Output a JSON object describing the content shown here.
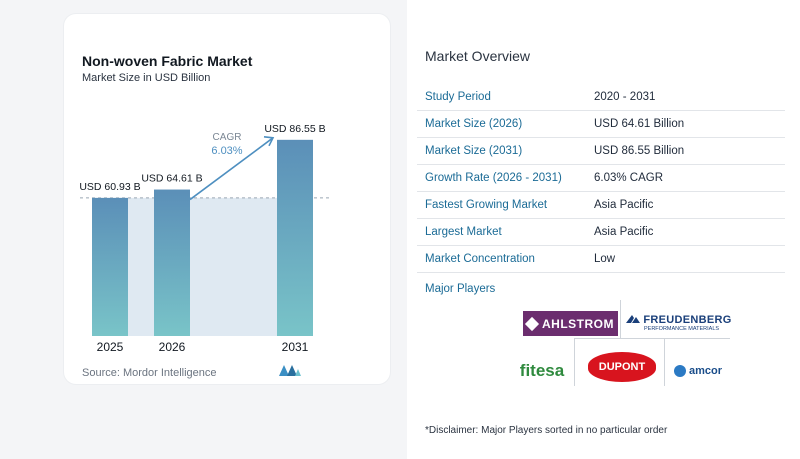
{
  "chart_data": {
    "type": "bar",
    "title": "Non-woven Fabric Market",
    "subtitle": "Market Size in USD Billion",
    "categories": [
      "2025",
      "2026",
      "2031"
    ],
    "values": [
      60.93,
      64.61,
      86.55
    ],
    "value_labels": [
      "USD 60.93 B",
      "USD 64.61 B",
      "USD 86.55 B"
    ],
    "annotation": {
      "label": "CAGR",
      "value": "6.03%"
    },
    "ylim": [
      0,
      90
    ],
    "colors": {
      "bar_top": "#5b8fb8",
      "bar_bottom": "#79c4c8",
      "area": "#dfe9f2",
      "arrow": "#4e8fc0"
    }
  },
  "source": "Source:  Mordor Intelligence",
  "overview": {
    "title": "Market Overview",
    "rows": [
      {
        "label": "Study Period",
        "value": "2020 - 2031"
      },
      {
        "label": "Market Size (2026)",
        "value": "USD 64.61 Billion"
      },
      {
        "label": "Market Size (2031)",
        "value": "USD 86.55 Billion"
      },
      {
        "label": "Growth Rate (2026 - 2031)",
        "value": "6.03% CAGR"
      },
      {
        "label": "Fastest Growing Market",
        "value": "Asia Pacific"
      },
      {
        "label": "Largest Market",
        "value": "Asia Pacific"
      },
      {
        "label": "Market Concentration",
        "value": "Low"
      }
    ]
  },
  "players": {
    "title": "Major Players",
    "logos": [
      "AHLSTROM",
      "FREUDENBERG",
      "PERFORMANCE MATERIALS",
      "fitesa",
      "DUPONT",
      "amcor"
    ]
  },
  "disclaimer": "*Disclaimer: Major Players sorted in no particular order"
}
